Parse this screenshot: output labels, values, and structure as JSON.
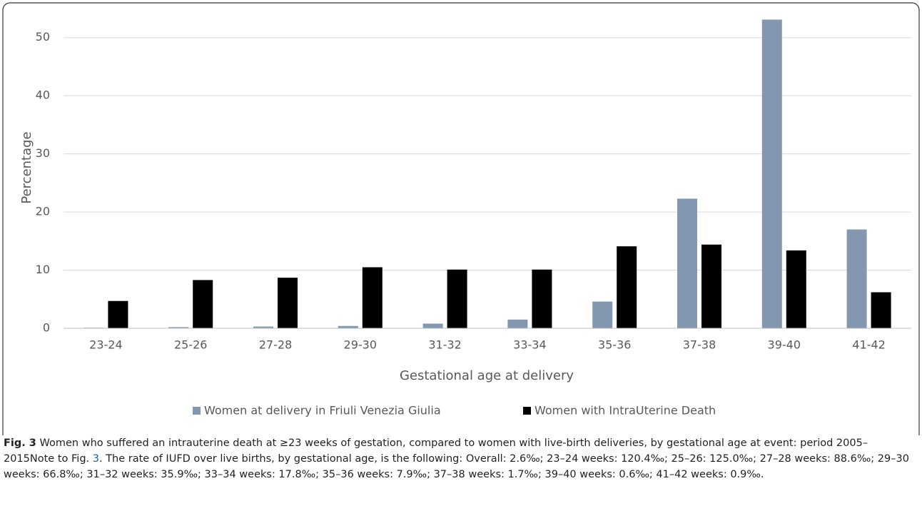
{
  "chart_data": {
    "type": "bar",
    "y_label": "Percentage",
    "x_label": "Gestational age at delivery",
    "categories": [
      "23-24",
      "25-26",
      "27-28",
      "29-30",
      "31-32",
      "33-34",
      "35-36",
      "37-38",
      "39-40",
      "41-42"
    ],
    "series": [
      {
        "name": "Women at delivery in Friuli Venezia Giulia",
        "color": "#8497b0",
        "values": [
          0.1,
          0.2,
          0.3,
          0.4,
          0.8,
          1.5,
          4.6,
          22.3,
          53.1,
          17.0
        ]
      },
      {
        "name": "Women with IntraUterine Death",
        "color": "#000000",
        "values": [
          4.7,
          8.3,
          8.7,
          10.5,
          10.1,
          10.1,
          14.1,
          14.4,
          13.4,
          6.2
        ]
      }
    ],
    "ylim": [
      0,
      55
    ],
    "yticks": [
      0,
      10,
      20,
      30,
      40,
      50
    ],
    "grid": true,
    "legend": "bottom"
  },
  "caption": {
    "label": "Fig. 3",
    "text1": " Women who suffered an intrauterine death at ≥23 weeks of gestation, compared to women with live-birth deliveries, by gestational age at event: period 2005–2015Note to Fig. ",
    "link": "3",
    "text2": ". The rate of IUFD over live births, by gestational age, is the following: Overall: 2.6‰; 23–24 weeks: 120.4‰; 25–26: 125.0‰; 27–28 weeks: 88.6‰; 29–30 weeks: 66.8‰; 31–32 weeks: 35.9‰; 33–34 weeks: 17.8‰; 35–36 weeks: 7.9‰; 37–38 weeks: 1.7‰; 39–40 weeks: 0.6‰; 41–42 weeks: 0.9‰."
  }
}
